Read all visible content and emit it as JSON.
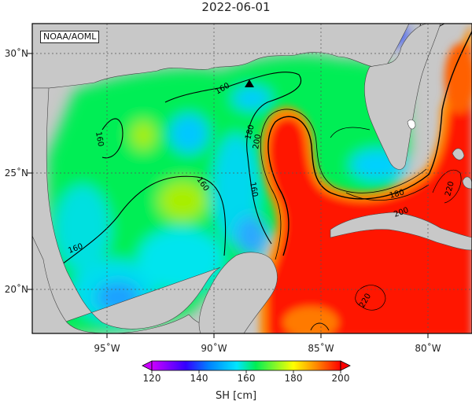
{
  "title": "2022-06-01",
  "credit": "NOAA/AOML",
  "lat_labels": [
    {
      "key": "30",
      "label": "30˚N"
    },
    {
      "key": "25",
      "label": "25˚N"
    },
    {
      "key": "20",
      "label": "20˚N"
    }
  ],
  "lon_labels": [
    {
      "key": "95",
      "label": "95˚W"
    },
    {
      "key": "90",
      "label": "90˚W"
    },
    {
      "key": "85",
      "label": "85˚W"
    },
    {
      "key": "80",
      "label": "80˚W"
    }
  ],
  "colorbar": {
    "label": "SH [cm]",
    "min": 120,
    "max": 200,
    "ticks": [
      "120",
      "140",
      "160",
      "180",
      "200"
    ]
  },
  "contour_labels": [
    "160",
    "180",
    "200",
    "220"
  ],
  "marker": "triangle",
  "colors": {
    "land": "#c8c8c8",
    "sh_120": "#cc00ff",
    "sh_140": "#0022ff",
    "sh_160": "#00e5ff",
    "sh_170": "#00ee44",
    "sh_180": "#ffff00",
    "sh_190": "#ff8000",
    "sh_200": "#ff0000"
  }
}
